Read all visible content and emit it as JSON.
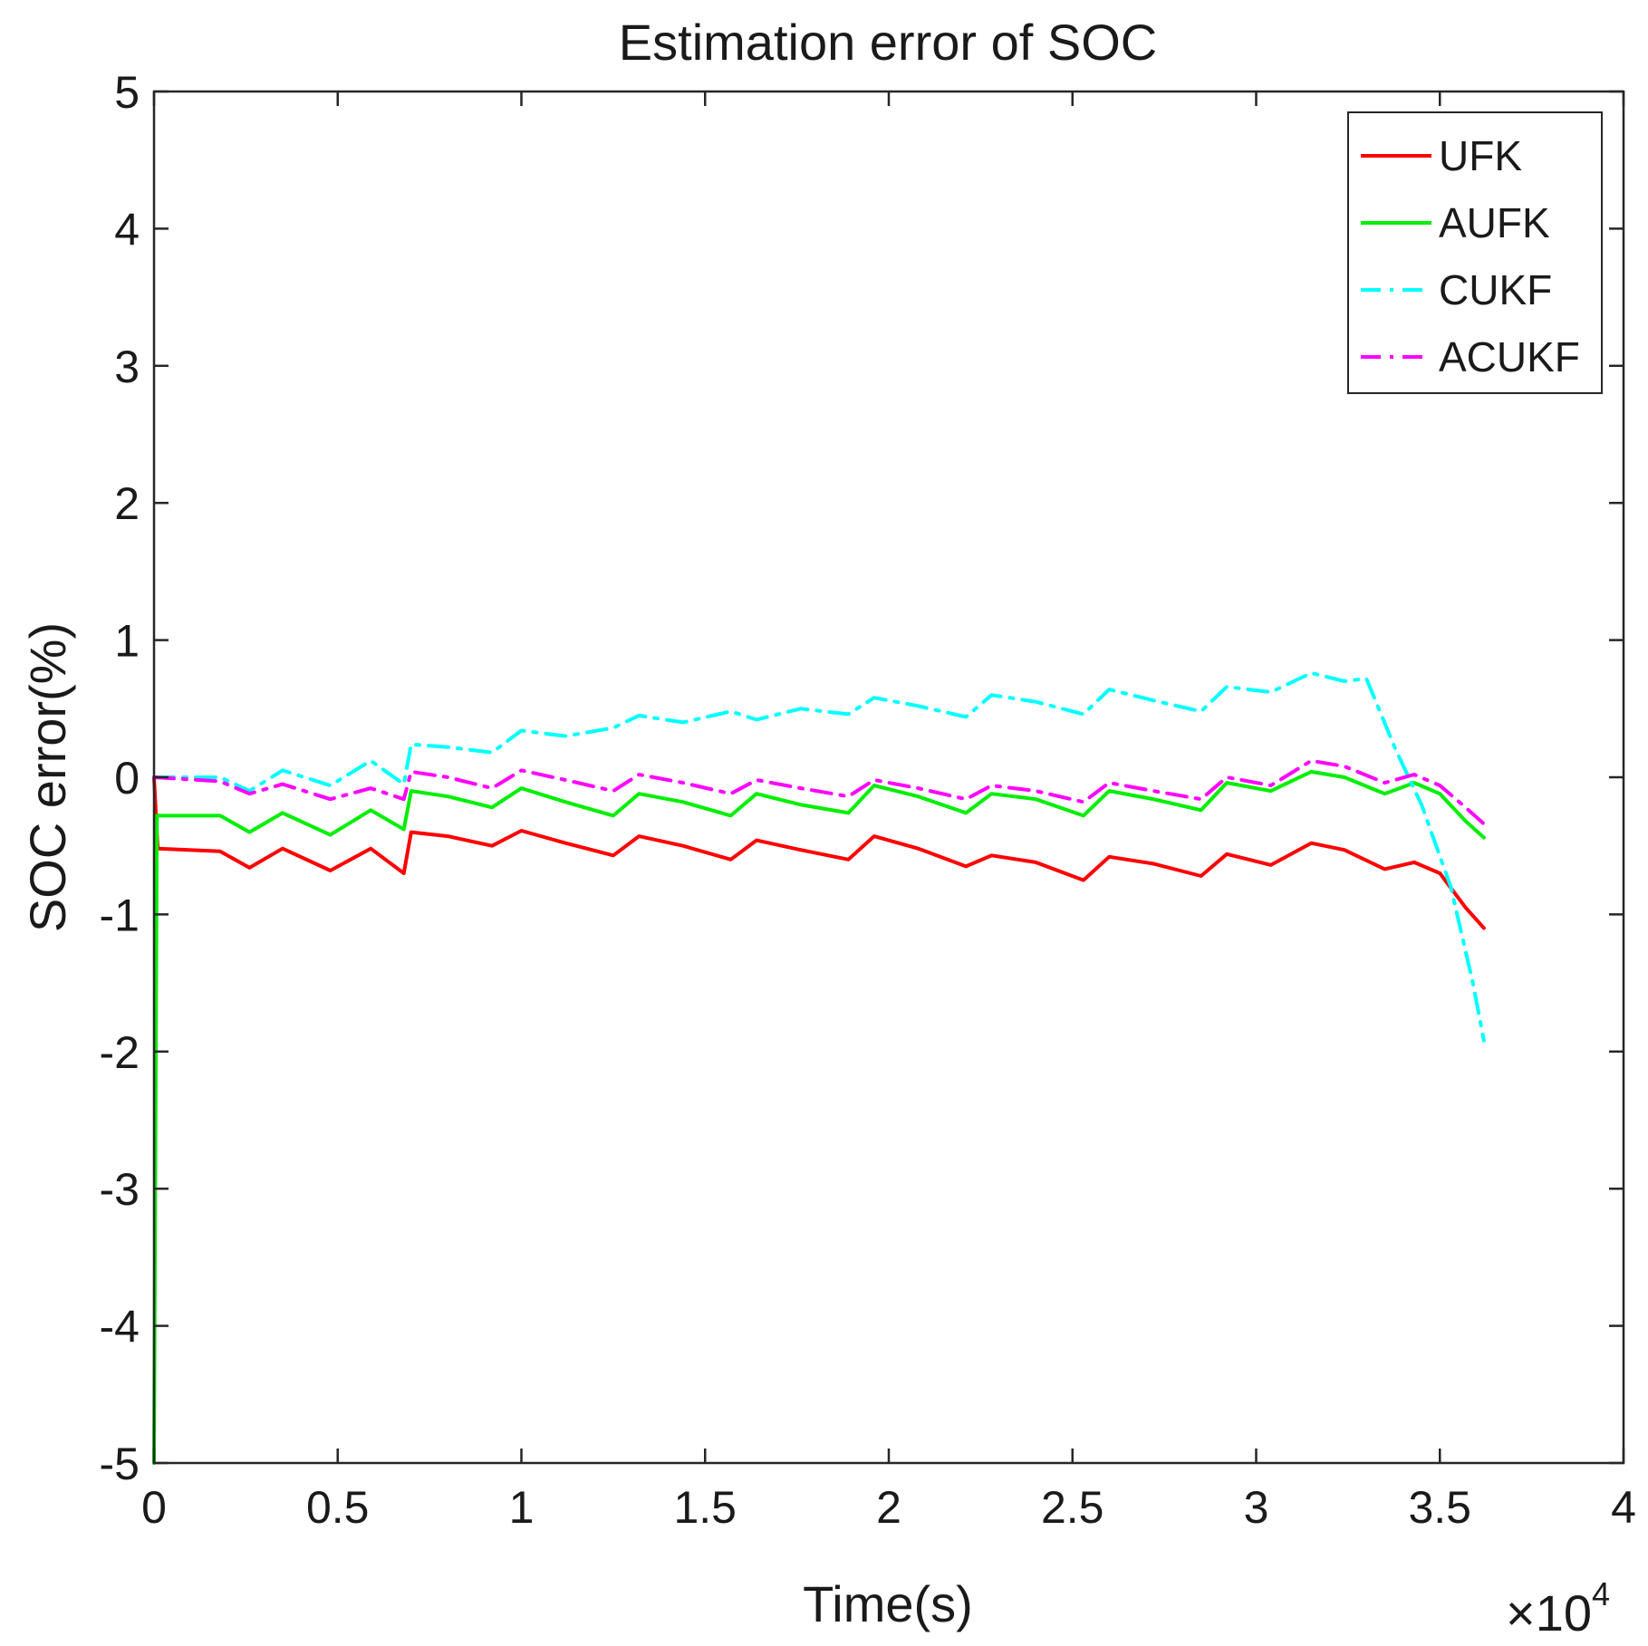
{
  "chart_data": {
    "type": "line",
    "title": "Estimation error of SOC",
    "xlabel": "Time(s)",
    "ylabel": "SOC error(%)",
    "x_exponent_label": "×10",
    "x_exponent_power": "4",
    "xlim": [
      0,
      40000
    ],
    "ylim": [
      -5,
      5
    ],
    "x_tick_values": [
      0,
      5000,
      10000,
      15000,
      20000,
      25000,
      30000,
      35000,
      40000
    ],
    "x_tick_labels": [
      "0",
      "0.5",
      "1",
      "1.5",
      "2",
      "2.5",
      "3",
      "3.5",
      "4"
    ],
    "y_tick_values": [
      -5,
      -4,
      -3,
      -2,
      -1,
      0,
      1,
      2,
      3,
      4,
      5
    ],
    "y_tick_labels": [
      "-5",
      "-4",
      "-3",
      "-2",
      "-1",
      "0",
      "1",
      "2",
      "3",
      "4",
      "5"
    ],
    "legend_position": "top-right",
    "series": [
      {
        "name": "UFK",
        "color": "#ff0000",
        "dash": "solid",
        "x": [
          0,
          100,
          1800,
          2600,
          3500,
          4800,
          5900,
          6800,
          7000,
          8000,
          9200,
          10000,
          11200,
          12500,
          13200,
          14400,
          15700,
          16400,
          17600,
          18900,
          19600,
          20800,
          22100,
          22800,
          24000,
          25300,
          26000,
          27200,
          28500,
          29200,
          30400,
          31500,
          32400,
          33500,
          34300,
          35000,
          35700,
          36200
        ],
        "values": [
          0,
          -0.52,
          -0.54,
          -0.66,
          -0.52,
          -0.68,
          -0.52,
          -0.7,
          -0.4,
          -0.43,
          -0.5,
          -0.39,
          -0.48,
          -0.57,
          -0.43,
          -0.5,
          -0.6,
          -0.46,
          -0.53,
          -0.6,
          -0.43,
          -0.52,
          -0.65,
          -0.57,
          -0.62,
          -0.75,
          -0.58,
          -0.63,
          -0.72,
          -0.56,
          -0.64,
          -0.48,
          -0.53,
          -0.67,
          -0.62,
          -0.7,
          -0.95,
          -1.1
        ]
      },
      {
        "name": "AUFK",
        "color": "#00ee00",
        "dash": "solid",
        "x": [
          0,
          80,
          1800,
          2600,
          3500,
          4800,
          5900,
          6800,
          7000,
          8000,
          9200,
          10000,
          11200,
          12500,
          13200,
          14400,
          15700,
          16400,
          17600,
          18900,
          19600,
          20800,
          22100,
          22800,
          24000,
          25300,
          26000,
          27200,
          28500,
          29200,
          30400,
          31500,
          32400,
          33500,
          34300,
          35000,
          35700,
          36200
        ],
        "values": [
          -5,
          -0.28,
          -0.28,
          -0.4,
          -0.26,
          -0.42,
          -0.24,
          -0.38,
          -0.1,
          -0.14,
          -0.22,
          -0.08,
          -0.18,
          -0.28,
          -0.12,
          -0.18,
          -0.28,
          -0.12,
          -0.2,
          -0.26,
          -0.06,
          -0.14,
          -0.26,
          -0.12,
          -0.16,
          -0.28,
          -0.1,
          -0.16,
          -0.24,
          -0.04,
          -0.1,
          0.04,
          0.0,
          -0.12,
          -0.04,
          -0.12,
          -0.32,
          -0.44
        ]
      },
      {
        "name": "CUKF",
        "color": "#00ffff",
        "dash": "dashdot",
        "x": [
          0,
          1800,
          2600,
          3500,
          4800,
          5900,
          6800,
          7000,
          8000,
          9200,
          10000,
          11200,
          12500,
          13200,
          14400,
          15700,
          16400,
          17600,
          18900,
          19600,
          20800,
          22100,
          22800,
          24000,
          25300,
          26000,
          27200,
          28500,
          29200,
          30400,
          31500,
          32400,
          33000,
          33800,
          34500,
          35300,
          35900,
          36200
        ],
        "values": [
          0,
          0.0,
          -0.1,
          0.05,
          -0.06,
          0.12,
          -0.05,
          0.24,
          0.22,
          0.18,
          0.34,
          0.3,
          0.36,
          0.45,
          0.4,
          0.48,
          0.42,
          0.5,
          0.46,
          0.58,
          0.52,
          0.44,
          0.6,
          0.55,
          0.46,
          0.64,
          0.56,
          0.48,
          0.66,
          0.62,
          0.76,
          0.7,
          0.72,
          0.2,
          -0.2,
          -0.8,
          -1.5,
          -1.92
        ]
      },
      {
        "name": "ACUKF",
        "color": "#ff00ff",
        "dash": "dashdot",
        "x": [
          0,
          1800,
          2600,
          3500,
          4800,
          5900,
          6800,
          7000,
          8000,
          9200,
          10000,
          11200,
          12500,
          13200,
          14400,
          15700,
          16400,
          17600,
          18900,
          19600,
          20800,
          22100,
          22800,
          24000,
          25300,
          26000,
          27200,
          28500,
          29200,
          30400,
          31500,
          32400,
          33500,
          34300,
          35000,
          35700,
          36200
        ],
        "values": [
          0,
          -0.03,
          -0.12,
          -0.05,
          -0.16,
          -0.08,
          -0.16,
          0.04,
          0.0,
          -0.08,
          0.05,
          -0.02,
          -0.1,
          0.02,
          -0.04,
          -0.12,
          -0.02,
          -0.08,
          -0.14,
          -0.02,
          -0.08,
          -0.16,
          -0.06,
          -0.1,
          -0.18,
          -0.04,
          -0.1,
          -0.16,
          0.0,
          -0.06,
          0.12,
          0.08,
          -0.04,
          0.02,
          -0.06,
          -0.22,
          -0.34
        ]
      }
    ]
  }
}
